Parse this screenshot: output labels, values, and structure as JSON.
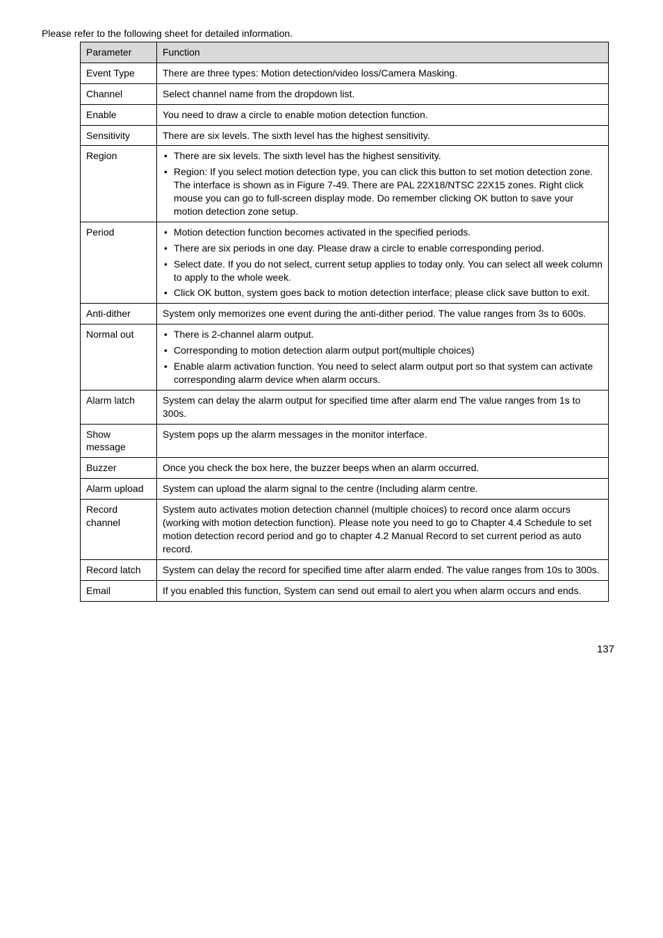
{
  "intro": "Please refer to the following sheet for detailed information.",
  "header": {
    "param": "Parameter",
    "func": "Function"
  },
  "rows": {
    "event_type": {
      "param": "Event Type",
      "func": "There are three types: Motion detection/video loss/Camera Masking."
    },
    "channel": {
      "param": "Channel",
      "func": "Select channel name from the dropdown list."
    },
    "enable": {
      "param": "Enable",
      "func": "You need to draw a circle to enable motion detection function."
    },
    "sensitivity": {
      "param": "Sensitivity",
      "func": "There are six levels.  The sixth level has the highest sensitivity."
    },
    "region": {
      "param": "Region",
      "b0": "There are six levels.  The sixth level has the highest sensitivity.",
      "b1": "Region: If you select motion detection type, you can click this button to set motion detection zone. The interface is shown as in Figure 7-49. There are PAL 22X18/NTSC 22X15 zones. Right click mouse you can go to full-screen display mode. Do remember clicking OK button to save your motion detection zone setup."
    },
    "period": {
      "param": "Period",
      "b0": "Motion detection function becomes activated in the specified periods.",
      "b1": "There are six periods in one day. Please draw a circle to enable corresponding period.",
      "b2": "Select date. If you do not select, current setup applies to today only. You can select all week column to apply to the whole week.",
      "b3": "Click OK button, system goes back to motion detection interface; please click save button to exit."
    },
    "anti_dither": {
      "param": "Anti-dither",
      "func": "System only memorizes one event during the anti-dither period. The value ranges from 3s to 600s."
    },
    "normal_out": {
      "param": "Normal out",
      "b0": "There is 2-channel alarm output.",
      "b1": "Corresponding to motion detection alarm output port(multiple choices)",
      "b2": "Enable alarm activation function. You need to select alarm output port so that system can activate corresponding alarm device when alarm occurs."
    },
    "alarm_latch": {
      "param": "Alarm latch",
      "func": "System can delay the alarm output for specified time after alarm end The value ranges from 1s to 300s."
    },
    "show_message": {
      "param": "Show message",
      "func": "System pops up the alarm messages in the monitor interface."
    },
    "buzzer": {
      "param": "Buzzer",
      "func": "Once you check the box here, the buzzer beeps when an alarm occurred."
    },
    "alarm_upload": {
      "param": "Alarm upload",
      "func": "System can upload the alarm signal to the centre (Including alarm centre."
    },
    "record_channel": {
      "param": "Record channel",
      "func": "System auto activates motion detection channel (multiple choices) to record once alarm occurs (working with motion detection function). Please note you need to go to Chapter 4.4 Schedule to set motion detection record period and go to chapter 4.2 Manual Record to set current period as auto record."
    },
    "record_latch": {
      "param": "Record latch",
      "func": "System can delay the record for specified time after alarm ended. The value ranges from 10s to 300s."
    },
    "email": {
      "param": "Email",
      "func": "If you enabled this function, System can send out email to alert you when alarm occurs and ends."
    }
  },
  "pagenum": "137"
}
